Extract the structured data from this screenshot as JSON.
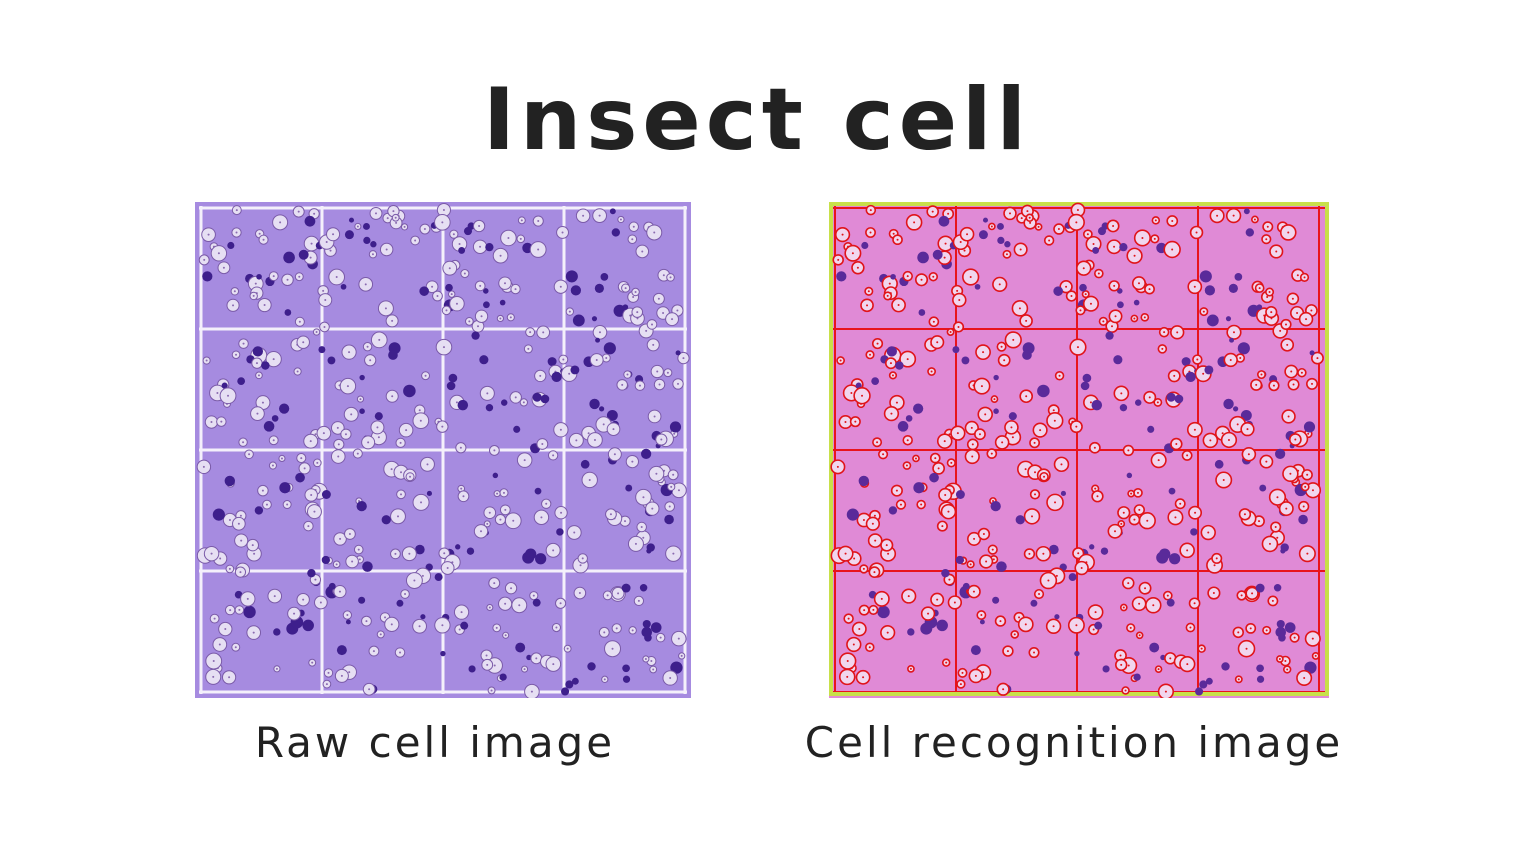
{
  "header": {
    "title": "Insect cell"
  },
  "panels": [
    {
      "caption": "Raw cell image"
    },
    {
      "caption": "Cell recognition image"
    }
  ]
}
